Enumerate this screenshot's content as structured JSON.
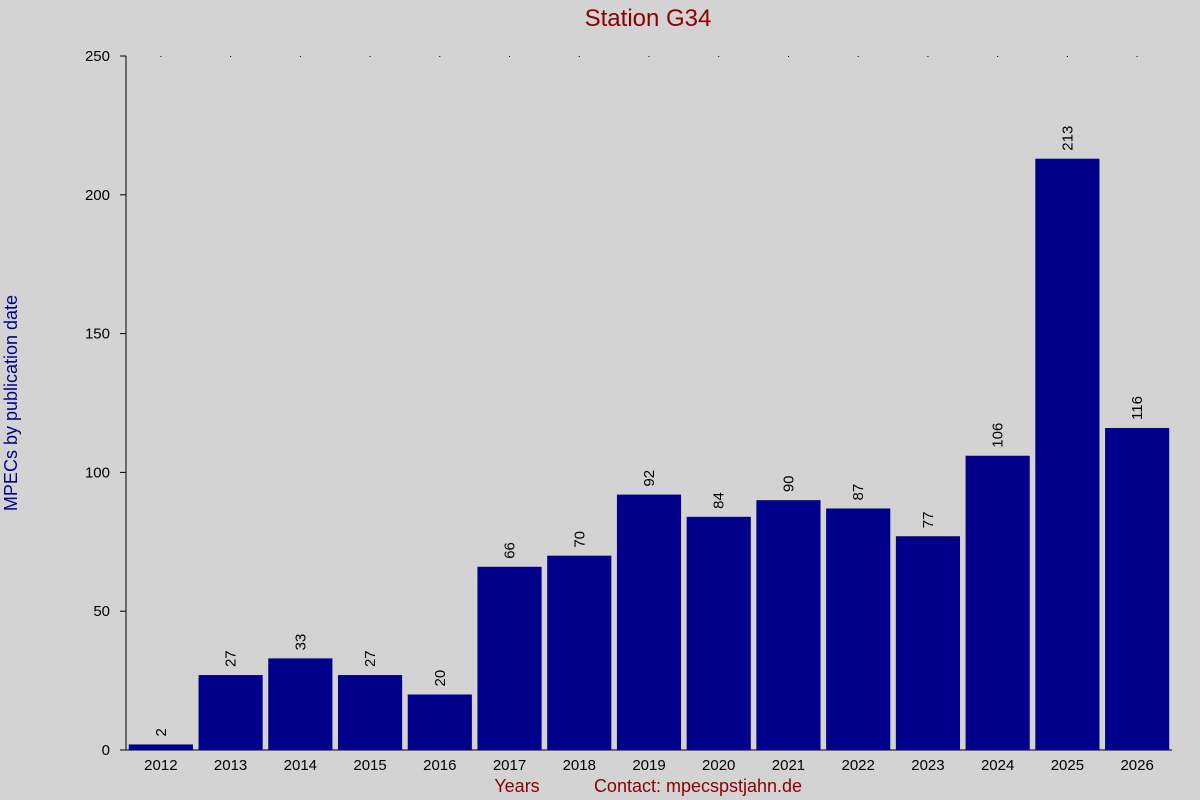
{
  "chart_data": {
    "type": "bar",
    "title": "Station G34",
    "y_label": "MPECs by publication date",
    "x_label": "Years",
    "annotation": "Contact: mpecspstjahn.de",
    "categories": [
      "2012",
      "2013",
      "2014",
      "2015",
      "2016",
      "2017",
      "2018",
      "2019",
      "2020",
      "2021",
      "2022",
      "2023",
      "2024",
      "2025",
      "2026"
    ],
    "values": [
      2,
      27,
      33,
      27,
      20,
      66,
      70,
      92,
      84,
      90,
      87,
      77,
      106,
      213,
      116
    ],
    "color": "#00008b",
    "ylim": [
      0,
      250
    ],
    "yticks": [
      0,
      50,
      100,
      150,
      200,
      250
    ],
    "grid": false
  }
}
